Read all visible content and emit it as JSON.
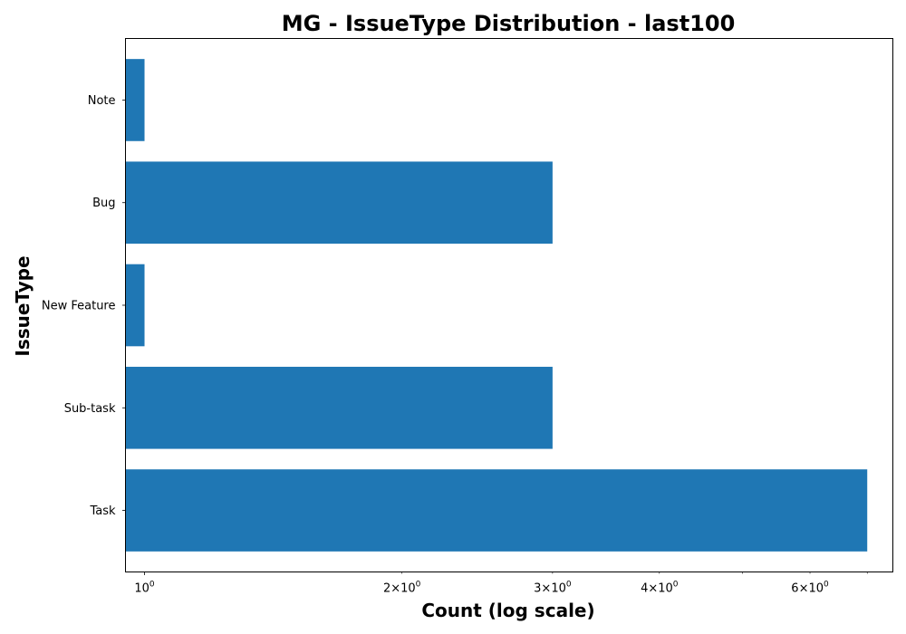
{
  "chart_data": {
    "type": "bar",
    "orientation": "horizontal",
    "title": "MG - IssueType Distribution - last100",
    "xlabel": "Count (log scale)",
    "ylabel": "IssueType",
    "xscale": "log",
    "xlim": [
      0.95,
      7.5
    ],
    "categories": [
      "Task",
      "Sub-task",
      "New Feature",
      "Bug",
      "Note"
    ],
    "values": [
      7,
      3,
      1,
      3,
      1
    ],
    "major_ticks": [
      {
        "value": 1,
        "mantissa": "",
        "base": "10",
        "exp": "0"
      }
    ],
    "minor_ticks_labeled": [
      {
        "value": 2,
        "mantissa": "2",
        "base": "10",
        "exp": "0"
      },
      {
        "value": 3,
        "mantissa": "3",
        "base": "10",
        "exp": "0"
      },
      {
        "value": 4,
        "mantissa": "4",
        "base": "10",
        "exp": "0"
      },
      {
        "value": 6,
        "mantissa": "6",
        "base": "10",
        "exp": "0"
      }
    ],
    "minor_ticks_unlabeled": [
      5,
      7
    ],
    "bar_color": "#1f77b4",
    "grid": false,
    "legend": "none"
  }
}
